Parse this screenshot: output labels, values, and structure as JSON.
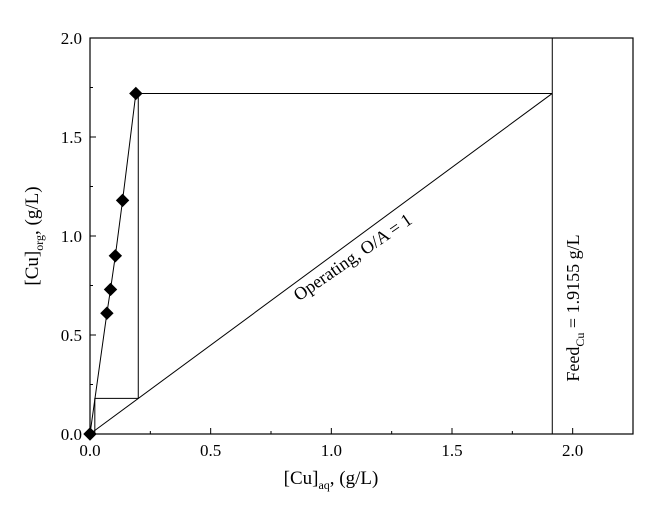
{
  "chart_data": {
    "type": "scatter",
    "title": "",
    "xlabel": {
      "main": "[Cu]",
      "sub": "aq",
      "suffix": ", (g/L)"
    },
    "ylabel": {
      "main": "[Cu]",
      "sub": "org",
      "suffix": ", (g/L)"
    },
    "xlim": [
      0,
      2.25
    ],
    "ylim": [
      0,
      2.0
    ],
    "x_ticks": [
      0.0,
      0.5,
      1.0,
      1.5,
      2.0
    ],
    "y_ticks": [
      0.0,
      0.5,
      1.0,
      1.5,
      2.0
    ],
    "x_tick_labels": [
      "0.0",
      "0.5",
      "1.0",
      "1.5",
      "2.0"
    ],
    "y_tick_labels": [
      "0.0",
      "0.5",
      "1.0",
      "1.5",
      "2.0"
    ],
    "grid": false,
    "series": [
      {
        "marker": "diamond",
        "color": "#000000",
        "x": [
          0.0,
          0.07,
          0.085,
          0.105,
          0.135,
          0.19
        ],
        "y": [
          0.0,
          0.61,
          0.73,
          0.9,
          1.18,
          1.72
        ]
      }
    ],
    "operating_line": {
      "x": [
        0.0,
        1.9155
      ],
      "y": [
        0.0,
        1.72
      ]
    },
    "stage_steps": {
      "x": [
        1.9155,
        0.2,
        0.2,
        0.02,
        0.02
      ],
      "y": [
        1.72,
        1.72,
        0.18,
        0.18,
        0.0
      ]
    },
    "feed_line": {
      "x": 1.9155
    },
    "annotations": {
      "operating": "Operating, O/A = 1",
      "feed": {
        "main": "Feed",
        "sub": "Cu",
        "suffix": " = 1.9155 g/L"
      }
    }
  }
}
